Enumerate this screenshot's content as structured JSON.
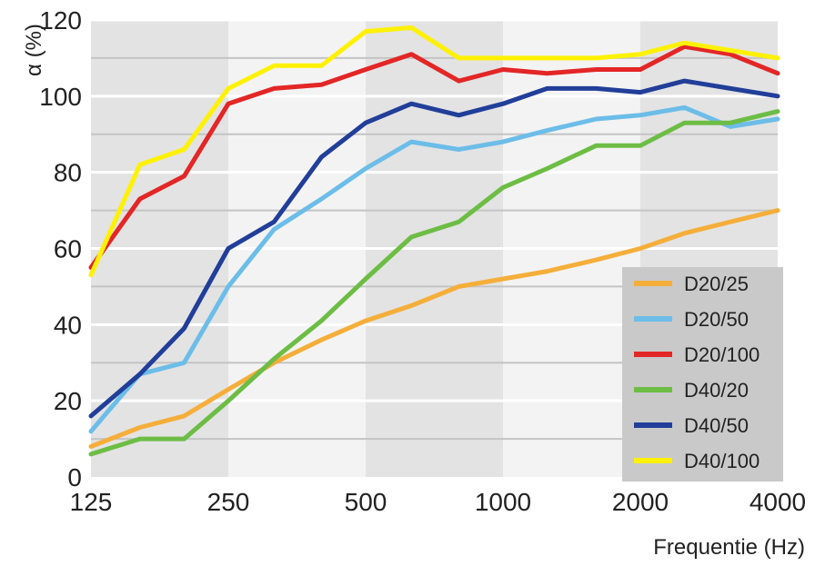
{
  "chart_data": {
    "type": "line",
    "title": "",
    "xlabel": "Frequentie (Hz)",
    "ylabel": "α (%)",
    "x": [
      125,
      160,
      200,
      250,
      315,
      400,
      500,
      630,
      800,
      1000,
      1250,
      1600,
      2000,
      2500,
      3150,
      4000
    ],
    "x_ticks": [
      125,
      250,
      500,
      1000,
      2000,
      4000
    ],
    "x_tick_labels": [
      "125",
      "250",
      "500",
      "1000",
      "2000",
      "4000"
    ],
    "y_ticks": [
      0,
      20,
      40,
      60,
      80,
      100,
      120
    ],
    "y_tick_labels": [
      "0",
      "20",
      "40",
      "60",
      "80",
      "100",
      "120"
    ],
    "ylim": [
      0,
      120
    ],
    "x_scale": "log",
    "legend_position": "bottom-right",
    "series": [
      {
        "name": "D20/25",
        "color": "#f5ae3a",
        "values": [
          8,
          13,
          16,
          23,
          30,
          36,
          41,
          45,
          50,
          52,
          54,
          57,
          60,
          64,
          67,
          70
        ]
      },
      {
        "name": "D20/50",
        "color": "#6cbde8",
        "values": [
          12,
          27,
          30,
          50,
          65,
          73,
          81,
          88,
          86,
          88,
          91,
          94,
          95,
          97,
          92,
          94
        ]
      },
      {
        "name": "D20/100",
        "color": "#e32626",
        "values": [
          55,
          73,
          79,
          98,
          102,
          103,
          107,
          111,
          104,
          107,
          106,
          107,
          107,
          113,
          111,
          106
        ]
      },
      {
        "name": "D40/20",
        "color": "#6dbd45",
        "values": [
          6,
          10,
          10,
          20,
          31,
          41,
          52,
          63,
          67,
          76,
          81,
          87,
          87,
          93,
          93,
          96
        ]
      },
      {
        "name": "D40/50",
        "color": "#213e99",
        "values": [
          16,
          27,
          39,
          60,
          67,
          84,
          93,
          98,
          95,
          98,
          102,
          102,
          101,
          104,
          102,
          100
        ]
      },
      {
        "name": "D40/100",
        "color": "#fff100",
        "values": [
          53,
          82,
          86,
          102,
          108,
          108,
          117,
          118,
          110,
          110,
          110,
          110,
          111,
          114,
          112,
          110
        ]
      }
    ]
  }
}
